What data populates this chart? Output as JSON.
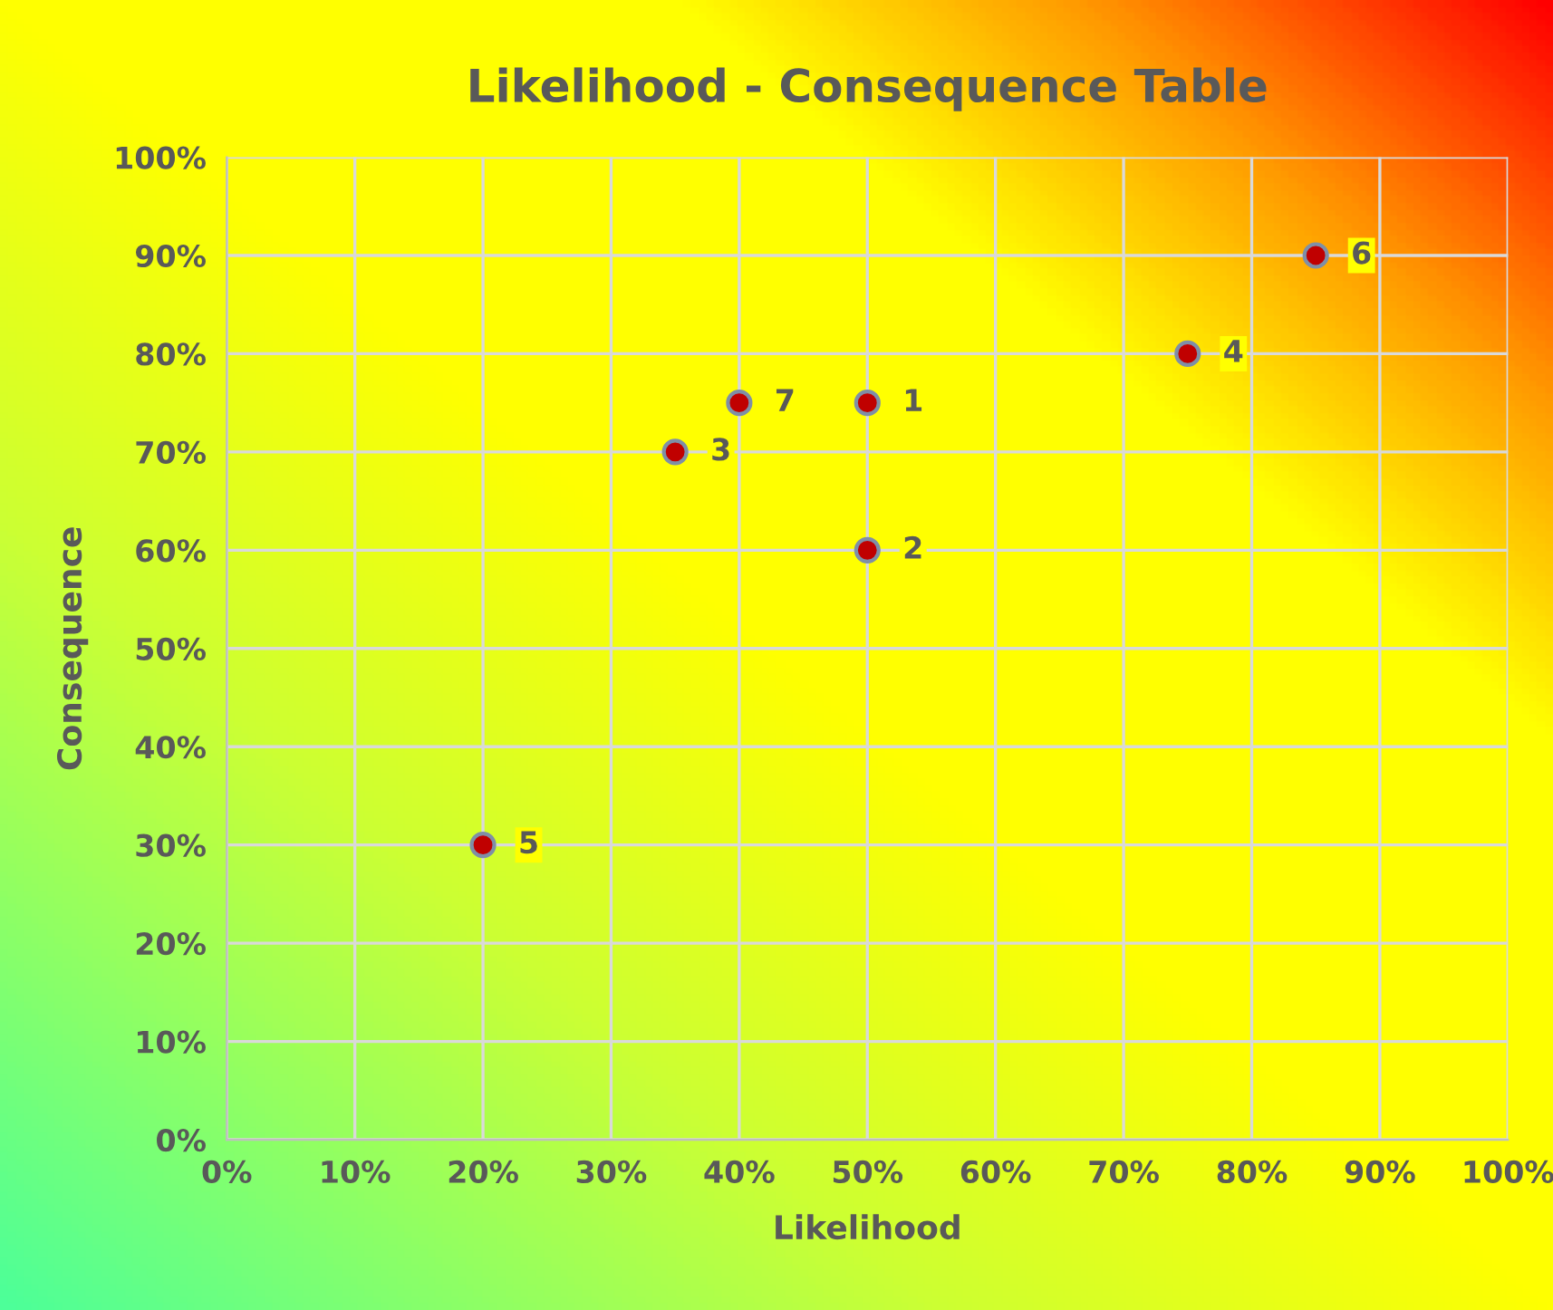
{
  "chart_data": {
    "type": "scatter",
    "title": "Likelihood - Consequence Table",
    "xlabel": "Likelihood",
    "ylabel": "Consequence",
    "x": [
      50,
      50,
      35,
      75,
      20,
      85,
      40
    ],
    "series": [
      {
        "color": "#c00000",
        "values": [
          75,
          60,
          70,
          80,
          30,
          90,
          75
        ]
      }
    ],
    "annotations": [
      {
        "text": "1",
        "x": 50,
        "y": 75
      },
      {
        "text": "2",
        "x": 50,
        "y": 60
      },
      {
        "text": "3",
        "x": 35,
        "y": 70
      },
      {
        "text": "4",
        "x": 75,
        "y": 80
      },
      {
        "text": "5",
        "x": 20,
        "y": 30
      },
      {
        "text": "6",
        "x": 85,
        "y": 90
      },
      {
        "text": "7",
        "x": 40,
        "y": 75
      }
    ],
    "xlim": [
      0,
      100
    ],
    "ylim": [
      0,
      100
    ],
    "xticks": [
      {
        "value": 0,
        "label": "0%"
      },
      {
        "value": 10,
        "label": "10%"
      },
      {
        "value": 20,
        "label": "20%"
      },
      {
        "value": 30,
        "label": "30%"
      },
      {
        "value": 40,
        "label": "40%"
      },
      {
        "value": 50,
        "label": "50%"
      },
      {
        "value": 60,
        "label": "60%"
      },
      {
        "value": 70,
        "label": "70%"
      },
      {
        "value": 80,
        "label": "80%"
      },
      {
        "value": 90,
        "label": "90%"
      },
      {
        "value": 100,
        "label": "100%"
      }
    ],
    "yticks": [
      {
        "value": 0,
        "label": "0%"
      },
      {
        "value": 10,
        "label": "10%"
      },
      {
        "value": 20,
        "label": "20%"
      },
      {
        "value": 30,
        "label": "30%"
      },
      {
        "value": 40,
        "label": "40%"
      },
      {
        "value": 50,
        "label": "50%"
      },
      {
        "value": 60,
        "label": "60%"
      },
      {
        "value": 70,
        "label": "70%"
      },
      {
        "value": 80,
        "label": "80%"
      },
      {
        "value": 90,
        "label": "90%"
      },
      {
        "value": 100,
        "label": "100%"
      }
    ],
    "grid": true,
    "marker": "circle",
    "legend": false
  }
}
